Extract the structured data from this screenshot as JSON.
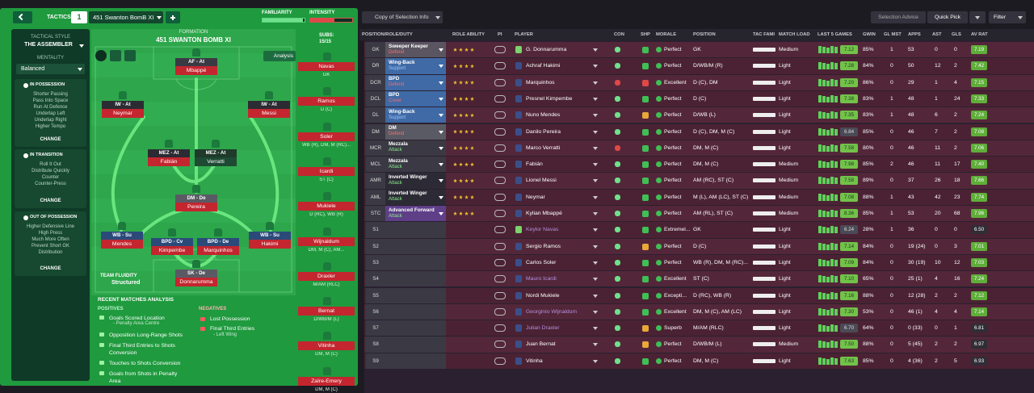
{
  "top_bar": {
    "tab": "TACTICS",
    "slot": "1",
    "tactic_name": "451 Swanton BomB XI",
    "familiarity": "FAMILIARITY",
    "intensity": "INTENSITY"
  },
  "sidebar": {
    "style_label": "TACTICAL STYLE",
    "style": "THE ASSEMBLER",
    "mentality_label": "MENTALITY",
    "mentality": "Balanced",
    "sections": [
      {
        "title": "IN POSSESSION",
        "items": [
          "Shorter Passing",
          "Pass Into Space",
          "Run At Defence",
          "Underlap Left",
          "Underlap Right",
          "Higher Tempo"
        ],
        "button": "CHANGE"
      },
      {
        "title": "IN TRANSITION",
        "items": [
          "Roll It Out",
          "Distribute Quickly",
          "Counter",
          "Counter-Press"
        ],
        "button": "CHANGE"
      },
      {
        "title": "OUT OF POSSESSION",
        "items": [
          "Higher Defensive Line",
          "High Press",
          "Much More Often",
          "Prevent Short GK",
          "Distribution"
        ],
        "button": "CHANGE"
      }
    ]
  },
  "pitch": {
    "formation_label": "FORMATION",
    "formation": "451 SWANTON BOMB XI",
    "analysis": "Analysis",
    "subs_label": "SUBS:",
    "subs_count": "15/15",
    "fluidity_label": "TEAM FLUIDITY",
    "fluidity": "Structured",
    "players": [
      {
        "role": "AF - At",
        "name": "Mbappé"
      },
      {
        "role": "IW - At",
        "name": "Neymar"
      },
      {
        "role": "IW - At",
        "name": "Messi"
      },
      {
        "role": "MEZ - At",
        "name": "Fabián"
      },
      {
        "role": "MEZ - At",
        "name": "Verratti"
      },
      {
        "role": "DM - De",
        "name": "Pereira"
      },
      {
        "role": "WB - Su",
        "name": "Mendes"
      },
      {
        "role": "BPD - Cv",
        "name": "Kimpembe"
      },
      {
        "role": "BPD - De",
        "name": "Marquinhos"
      },
      {
        "role": "WB - Su",
        "name": "Hakimi"
      },
      {
        "role": "SK - De",
        "name": "Donnarumma"
      }
    ],
    "subs": [
      {
        "name": "Navas",
        "position": "GK"
      },
      {
        "name": "Ramos",
        "position": "D (C)"
      },
      {
        "name": "Soler",
        "position": "WB (R), DM, M (RC)..."
      },
      {
        "name": "Icardi",
        "position": "ST (C)"
      },
      {
        "name": "Mukiele",
        "position": "D (RC), WB (R)"
      },
      {
        "name": "Wijnaldum",
        "position": "DM, M (C), AM..."
      },
      {
        "name": "Draxler",
        "position": "M/AM (RLC)"
      },
      {
        "name": "Bernat",
        "position": "D/WB/M (L)"
      },
      {
        "name": "Vitinha",
        "position": "DM, M (C)"
      },
      {
        "name": "Zaïre-Emery",
        "position": "DM, M (C)"
      }
    ]
  },
  "analysis": {
    "title": "RECENT MATCHES ANALYSIS",
    "positives_label": "POSITIVES",
    "positives": [
      {
        "text": "Goals Scored Location",
        "detail": "- Penalty Area Centre"
      },
      {
        "text": "Opposition Long-Range Shots"
      },
      {
        "text": "Final Third Entries to Shots Conversion"
      },
      {
        "text": "Touches to Shots Conversion"
      },
      {
        "text": "Goals from Shots in Penalty Area"
      }
    ],
    "negatives_label": "NEGATIVES",
    "negatives": [
      {
        "text": "Lost Possession"
      },
      {
        "text": "Final Third Entries",
        "detail": "- Left Wing"
      }
    ]
  },
  "toolbar": {
    "view": "Copy of Selection Info",
    "advice": "Selection Advice",
    "quick_pick": "Quick Pick",
    "filter": "Filter"
  },
  "table": {
    "headers": [
      "POSITION/ROLE/DUTY",
      "ROLE ABILITY",
      "PI",
      "PLAYER",
      "CON",
      "SHP",
      "MORALE",
      "POSITION",
      "TAC FAMI",
      "MATCH LOAD",
      "LAST 5 GAMES",
      "GWIN",
      "GL MST",
      "APPS",
      "AST",
      "GLS",
      "AV RAT"
    ],
    "rows": [
      {
        "pos": "GK",
        "role": "Sweeper Keeper",
        "duty": "Defend",
        "player": "G. Donnarumma",
        "morale": "Perfect",
        "position": "GK",
        "load": "Medium",
        "form": "7.12",
        "gwin": "85%",
        "glmst": "1",
        "apps": "53",
        "ast": "0",
        "gls": "0",
        "rating": "7.19"
      },
      {
        "pos": "DR",
        "role": "Wing-Back",
        "duty": "Support",
        "player": "Achraf Hakimi",
        "morale": "Perfect",
        "position": "D/WB/M (R)",
        "load": "Light",
        "form": "7.28",
        "gwin": "84%",
        "glmst": "0",
        "apps": "50",
        "ast": "12",
        "gls": "2",
        "rating": "7.42"
      },
      {
        "pos": "DCR",
        "role": "BPD",
        "duty": "Defend",
        "player": "Marquinhos",
        "morale": "Excellent",
        "position": "D (C), DM",
        "load": "Light",
        "form": "7.20",
        "gwin": "86%",
        "glmst": "0",
        "apps": "29",
        "ast": "1",
        "gls": "4",
        "rating": "7.15"
      },
      {
        "pos": "DCL",
        "role": "BPD",
        "duty": "Cover",
        "player": "Presnel Kimpembe",
        "morale": "Perfect",
        "position": "D (C)",
        "load": "Light",
        "form": "7.38",
        "gwin": "83%",
        "glmst": "1",
        "apps": "48",
        "ast": "1",
        "gls": "24",
        "rating": "7.33"
      },
      {
        "pos": "DL",
        "role": "Wing-Back",
        "duty": "Support",
        "player": "Nuno Mendes",
        "morale": "Perfect",
        "position": "D/WB (L)",
        "load": "Light",
        "form": "7.35",
        "gwin": "83%",
        "glmst": "1",
        "apps": "48",
        "ast": "6",
        "gls": "2",
        "rating": "7.24"
      },
      {
        "pos": "DM",
        "role": "DM",
        "duty": "Defend",
        "player": "Danilo Pereira",
        "morale": "Perfect",
        "position": "D (C), DM, M (C)",
        "load": "Light",
        "form": "6.84",
        "gwin": "85%",
        "glmst": "0",
        "apps": "46",
        "ast": "7",
        "gls": "2",
        "rating": "7.08"
      },
      {
        "pos": "MCR",
        "role": "Mezzala",
        "duty": "Attack",
        "player": "Marco Verratti",
        "morale": "Perfect",
        "position": "DM, M (C)",
        "load": "Light",
        "form": "7.58",
        "gwin": "80%",
        "glmst": "0",
        "apps": "46",
        "ast": "11",
        "gls": "2",
        "rating": "7.06"
      },
      {
        "pos": "MCL",
        "role": "Mezzala",
        "duty": "Attack",
        "player": "Fabián",
        "morale": "Perfect",
        "position": "DM, M (C)",
        "load": "Medium",
        "form": "7.98",
        "gwin": "85%",
        "glmst": "2",
        "apps": "46",
        "ast": "11",
        "gls": "17",
        "rating": "7.40"
      },
      {
        "pos": "AMR",
        "role": "Inverted Winger",
        "duty": "Attack",
        "player": "Lionel Messi",
        "morale": "Perfect",
        "position": "AM (RC), ST (C)",
        "load": "Medium",
        "form": "7.58",
        "gwin": "89%",
        "glmst": "0",
        "apps": "37",
        "ast": "26",
        "gls": "18",
        "rating": "7.66"
      },
      {
        "pos": "AML",
        "role": "Inverted Winger",
        "duty": "Attack",
        "player": "Neymar",
        "morale": "Perfect",
        "position": "M (L), AM (LC), ST (C)",
        "load": "Medium",
        "form": "7.08",
        "gwin": "88%",
        "glmst": "1",
        "apps": "43",
        "ast": "42",
        "gls": "23",
        "rating": "7.74"
      },
      {
        "pos": "STC",
        "role": "Advanced Forward",
        "duty": "Attack",
        "player": "Kylian Mbappé",
        "morale": "Perfect",
        "position": "AM (RL), ST (C)",
        "load": "Medium",
        "form": "8.36",
        "gwin": "85%",
        "glmst": "1",
        "apps": "53",
        "ast": "20",
        "gls": "68",
        "rating": "7.96"
      },
      {
        "pos": "S1",
        "player": "Keylor Navas",
        "morale": "Extremel...",
        "position": "GK",
        "load": "Light",
        "form": "6.24",
        "gwin": "28%",
        "glmst": "1",
        "apps": "36",
        "ast": "0",
        "gls": "0",
        "rating": "6.50"
      },
      {
        "pos": "S2",
        "player": "Sergio Ramos",
        "morale": "Perfect",
        "position": "D (C)",
        "load": "Light",
        "form": "7.14",
        "gwin": "84%",
        "glmst": "0",
        "apps": "19 (24)",
        "ast": "0",
        "gls": "3",
        "rating": "7.01"
      },
      {
        "pos": "S3",
        "player": "Carlos Soler",
        "morale": "Perfect",
        "position": "WB (R), DM, M (RC)...",
        "load": "Light",
        "form": "7.09",
        "gwin": "84%",
        "glmst": "0",
        "apps": "30 (19)",
        "ast": "10",
        "gls": "12",
        "rating": "7.03"
      },
      {
        "pos": "S4",
        "player": "Mauro Icardi",
        "morale": "Excellent",
        "position": "ST (C)",
        "load": "Light",
        "form": "7.10",
        "gwin": "65%",
        "glmst": "0",
        "apps": "25 (1)",
        "ast": "4",
        "gls": "16",
        "rating": "7.24"
      },
      {
        "pos": "S5",
        "player": "Nordi Mukiele",
        "morale": "Excepti...",
        "position": "D (RC), WB (R)",
        "load": "Light",
        "form": "7.16",
        "gwin": "88%",
        "glmst": "0",
        "apps": "12 (28)",
        "ast": "2",
        "gls": "2",
        "rating": "7.12"
      },
      {
        "pos": "S6",
        "player": "Georginio Wijnaldum",
        "morale": "Excellent",
        "position": "DM, M (C), AM (LC)",
        "load": "Light",
        "form": "7.30",
        "gwin": "53%",
        "glmst": "0",
        "apps": "46 (1)",
        "ast": "4",
        "gls": "4",
        "rating": "7.14"
      },
      {
        "pos": "S7",
        "player": "Julian Draxler",
        "morale": "Superb",
        "position": "M/AM (RLC)",
        "load": "Light",
        "form": "6.70",
        "gwin": "64%",
        "glmst": "0",
        "apps": "0 (33)",
        "ast": "0",
        "gls": "1",
        "rating": "6.81"
      },
      {
        "pos": "S8",
        "player": "Juan Bernat",
        "morale": "Perfect",
        "position": "D/WB/M (L)",
        "load": "Medium",
        "form": "7.50",
        "gwin": "88%",
        "glmst": "0",
        "apps": "5 (45)",
        "ast": "2",
        "gls": "2",
        "rating": "6.97"
      },
      {
        "pos": "S9",
        "player": "Vitinha",
        "morale": "Perfect",
        "position": "DM, M (C)",
        "load": "Light",
        "form": "7.63",
        "gwin": "85%",
        "glmst": "0",
        "apps": "4 (36)",
        "ast": "2",
        "gls": "5",
        "rating": "6.93"
      }
    ]
  }
}
